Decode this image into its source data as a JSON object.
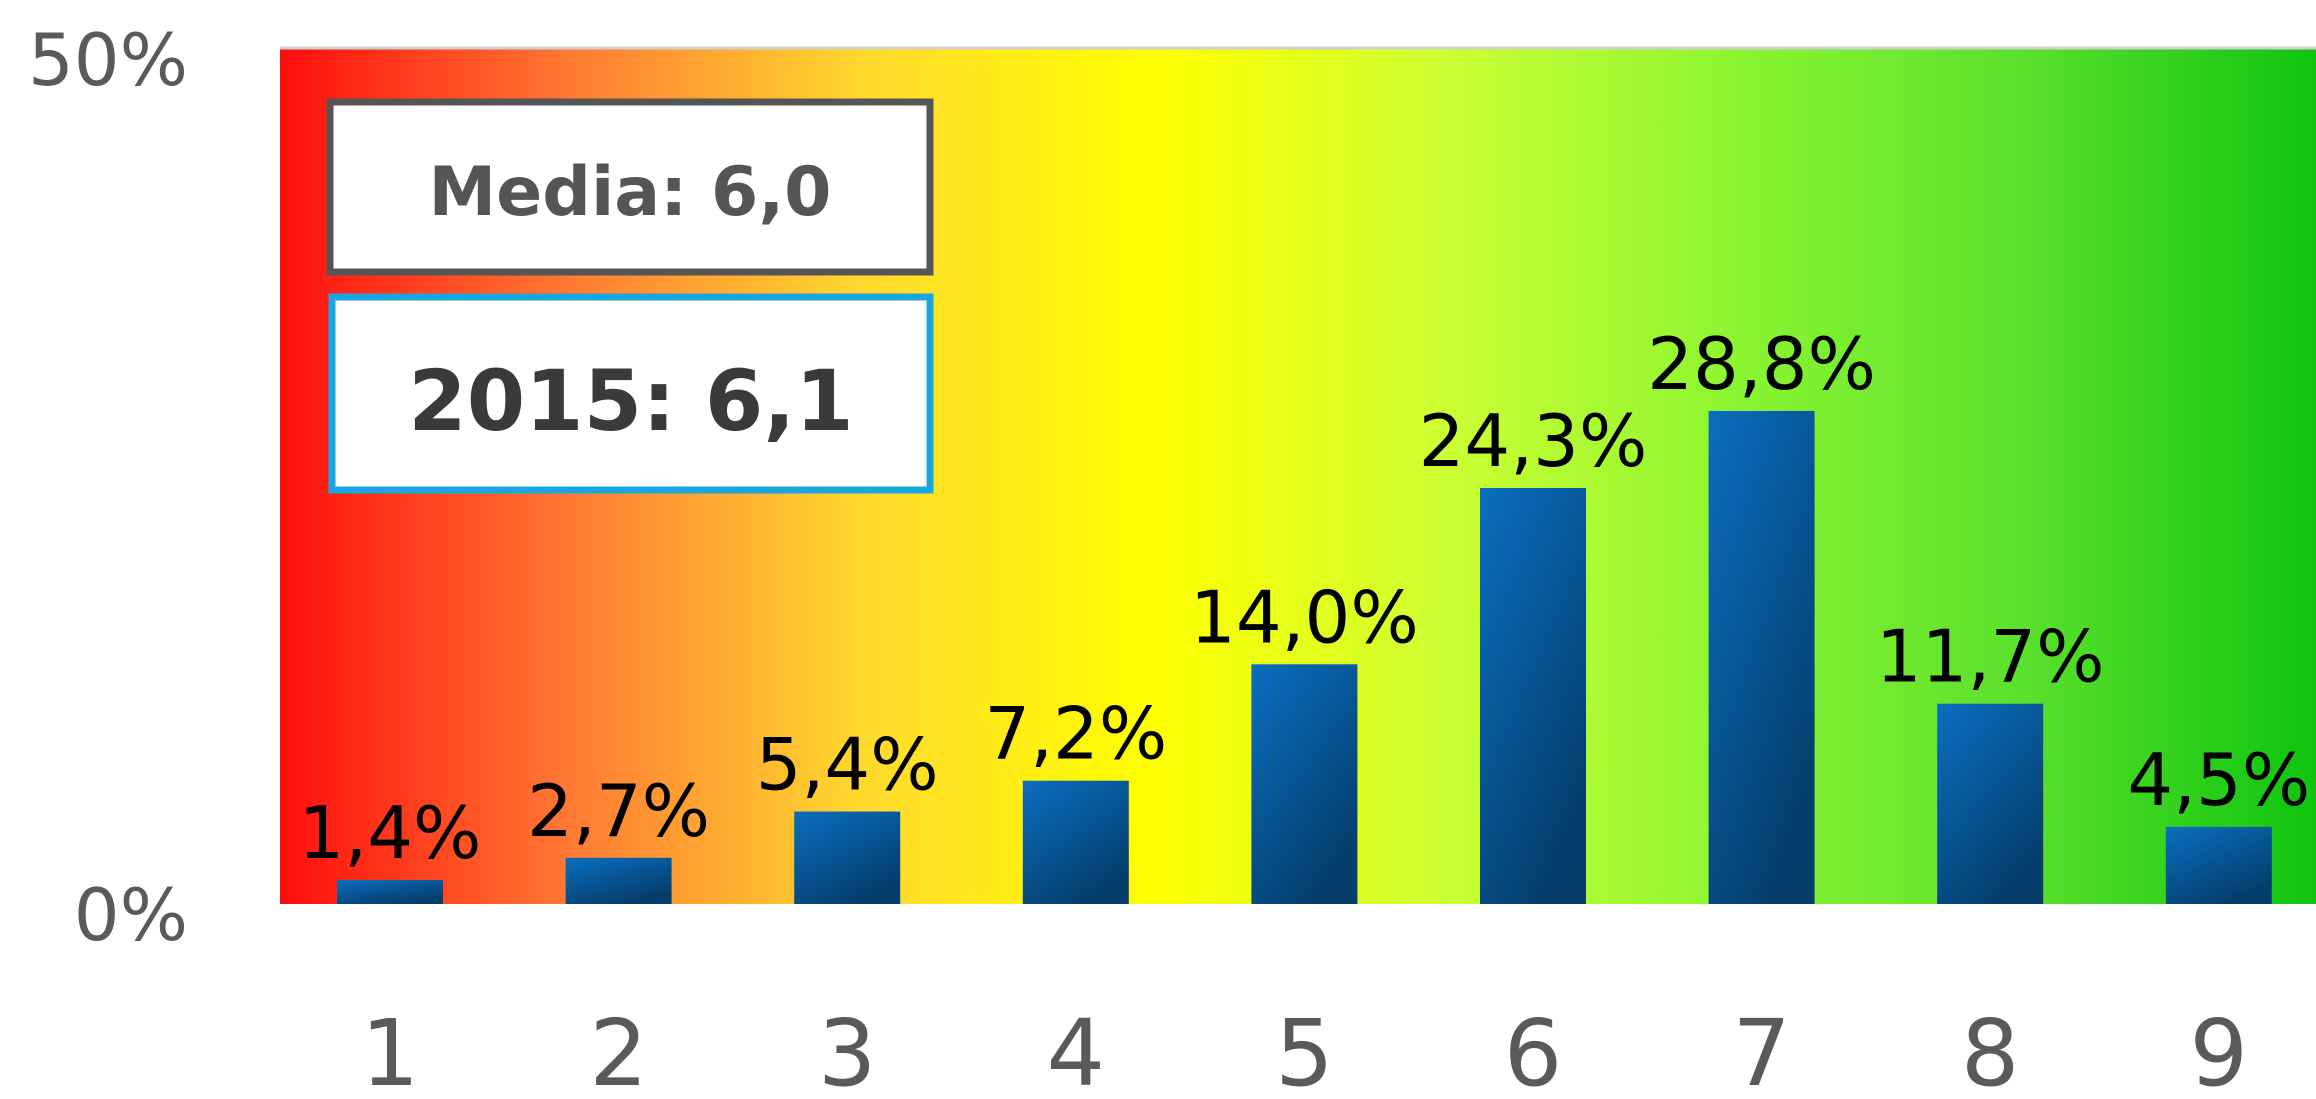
{
  "chart_data": {
    "type": "bar",
    "categories": [
      "1",
      "2",
      "3",
      "4",
      "5",
      "6",
      "7",
      "8",
      "9"
    ],
    "values": [
      1.4,
      2.7,
      5.4,
      7.2,
      14.0,
      24.3,
      28.8,
      11.7,
      4.5
    ],
    "value_labels": [
      "1,4%",
      "2,7%",
      "5,4%",
      "7,2%",
      "14,0%",
      "24,3%",
      "28,8%",
      "11,7%",
      "4,5%"
    ],
    "y_ticks": [
      "0%",
      "50%"
    ],
    "ylim": [
      0,
      50
    ],
    "title": "",
    "xlabel": "",
    "ylabel": "",
    "grid": false,
    "background_gradient": [
      "#ff0d0d",
      "#ff7a33",
      "#ffd92e",
      "#ffff00",
      "#ccff33",
      "#8cf531",
      "#5ae02d",
      "#0fc40f"
    ],
    "bar_color": "#0a63ad",
    "bar_color_dark": "#053d6b",
    "annotations": {
      "media": {
        "label": "Media: 6,0",
        "border_color": "#555555"
      },
      "year": {
        "label": "2015: 6,1",
        "border_color": "#1aa7e0"
      }
    }
  }
}
